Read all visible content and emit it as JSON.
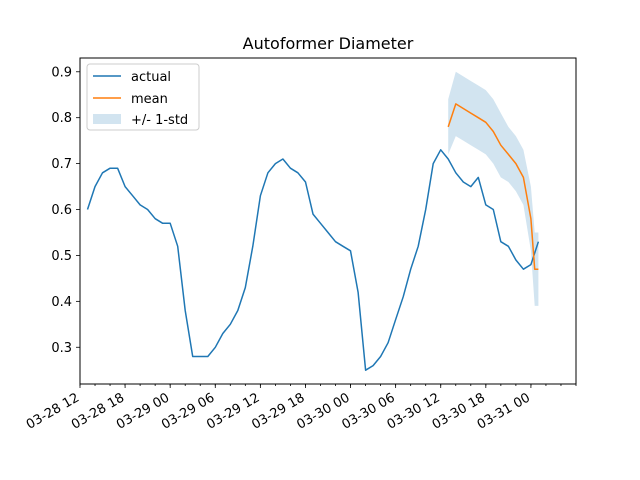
{
  "chart_data": {
    "type": "line",
    "title": "Autoformer Diameter",
    "xlabel": "",
    "ylabel": "",
    "x_axis": {
      "type": "datetime",
      "range": [
        "2024-03-28T12:00",
        "2024-03-31T06:00"
      ],
      "tick_labels": [
        "03-28 12",
        "03-28 18",
        "03-29 00",
        "03-29 06",
        "03-29 12",
        "03-29 18",
        "03-30 00",
        "03-30 06",
        "03-30 12",
        "03-30 18",
        "03-31 00"
      ],
      "tick_values": [
        "2024-03-28T12:00",
        "2024-03-28T18:00",
        "2024-03-29T00:00",
        "2024-03-29T06:00",
        "2024-03-29T12:00",
        "2024-03-29T18:00",
        "2024-03-30T00:00",
        "2024-03-30T06:00",
        "2024-03-30T12:00",
        "2024-03-30T18:00",
        "2024-03-31T00:00"
      ]
    },
    "y_axis": {
      "range": [
        0.22,
        0.93
      ],
      "ticks": [
        0.3,
        0.4,
        0.5,
        0.6,
        0.7,
        0.8,
        0.9
      ],
      "tick_labels": [
        "0.3",
        "0.4",
        "0.5",
        "0.6",
        "0.7",
        "0.8",
        "0.9"
      ]
    },
    "grid": false,
    "legend": {
      "position": "top-left",
      "entries": [
        "actual",
        "mean",
        "+/- 1-std"
      ]
    },
    "series": [
      {
        "name": "actual",
        "color": "#1f77b4",
        "x": [
          "2024-03-28T13:00",
          "2024-03-28T14:00",
          "2024-03-28T15:00",
          "2024-03-28T16:00",
          "2024-03-28T17:00",
          "2024-03-28T18:00",
          "2024-03-28T19:00",
          "2024-03-28T20:00",
          "2024-03-28T21:00",
          "2024-03-28T22:00",
          "2024-03-28T23:00",
          "2024-03-29T00:00",
          "2024-03-29T01:00",
          "2024-03-29T02:00",
          "2024-03-29T03:00",
          "2024-03-29T04:00",
          "2024-03-29T05:00",
          "2024-03-29T06:00",
          "2024-03-29T07:00",
          "2024-03-29T08:00",
          "2024-03-29T09:00",
          "2024-03-29T10:00",
          "2024-03-29T11:00",
          "2024-03-29T12:00",
          "2024-03-29T13:00",
          "2024-03-29T14:00",
          "2024-03-29T15:00",
          "2024-03-29T16:00",
          "2024-03-29T17:00",
          "2024-03-29T18:00",
          "2024-03-29T19:00",
          "2024-03-29T20:00",
          "2024-03-29T21:00",
          "2024-03-29T22:00",
          "2024-03-29T23:00",
          "2024-03-30T00:00",
          "2024-03-30T01:00",
          "2024-03-30T02:00",
          "2024-03-30T03:00",
          "2024-03-30T04:00",
          "2024-03-30T05:00",
          "2024-03-30T06:00",
          "2024-03-30T07:00",
          "2024-03-30T08:00",
          "2024-03-30T09:00",
          "2024-03-30T10:00",
          "2024-03-30T11:00",
          "2024-03-30T12:00",
          "2024-03-30T13:00",
          "2024-03-30T14:00",
          "2024-03-30T15:00",
          "2024-03-30T16:00",
          "2024-03-30T17:00",
          "2024-03-30T18:00",
          "2024-03-30T19:00",
          "2024-03-30T20:00",
          "2024-03-30T21:00",
          "2024-03-30T22:00",
          "2024-03-30T23:00",
          "2024-03-31T00:00",
          "2024-03-31T01:00"
        ],
        "values": [
          0.6,
          0.65,
          0.68,
          0.69,
          0.69,
          0.65,
          0.63,
          0.61,
          0.6,
          0.58,
          0.57,
          0.57,
          0.52,
          0.38,
          0.28,
          0.28,
          0.28,
          0.3,
          0.33,
          0.35,
          0.38,
          0.43,
          0.52,
          0.63,
          0.68,
          0.7,
          0.71,
          0.69,
          0.68,
          0.66,
          0.59,
          0.57,
          0.55,
          0.53,
          0.52,
          0.51,
          0.42,
          0.25,
          0.26,
          0.28,
          0.31,
          0.36,
          0.41,
          0.47,
          0.52,
          0.6,
          0.7,
          0.73,
          0.71,
          0.68,
          0.66,
          0.65,
          0.67,
          0.61,
          0.6,
          0.53,
          0.52,
          0.49,
          0.47,
          0.48,
          0.53
        ]
      },
      {
        "name": "mean",
        "color": "#ff7f0e",
        "x": [
          "2024-03-30T13:00",
          "2024-03-30T14:00",
          "2024-03-30T15:00",
          "2024-03-30T16:00",
          "2024-03-30T17:00",
          "2024-03-30T18:00",
          "2024-03-30T19:00",
          "2024-03-30T20:00",
          "2024-03-30T21:00",
          "2024-03-30T22:00",
          "2024-03-30T23:00",
          "2024-03-31T00:00",
          "2024-03-31T00:30",
          "2024-03-31T01:00"
        ],
        "values": [
          0.78,
          0.83,
          0.82,
          0.81,
          0.8,
          0.79,
          0.77,
          0.74,
          0.72,
          0.7,
          0.67,
          0.58,
          0.47,
          0.47
        ],
        "std": [
          0.06,
          0.07,
          0.07,
          0.07,
          0.07,
          0.07,
          0.07,
          0.07,
          0.06,
          0.06,
          0.06,
          0.07,
          0.08,
          0.08
        ]
      }
    ]
  }
}
